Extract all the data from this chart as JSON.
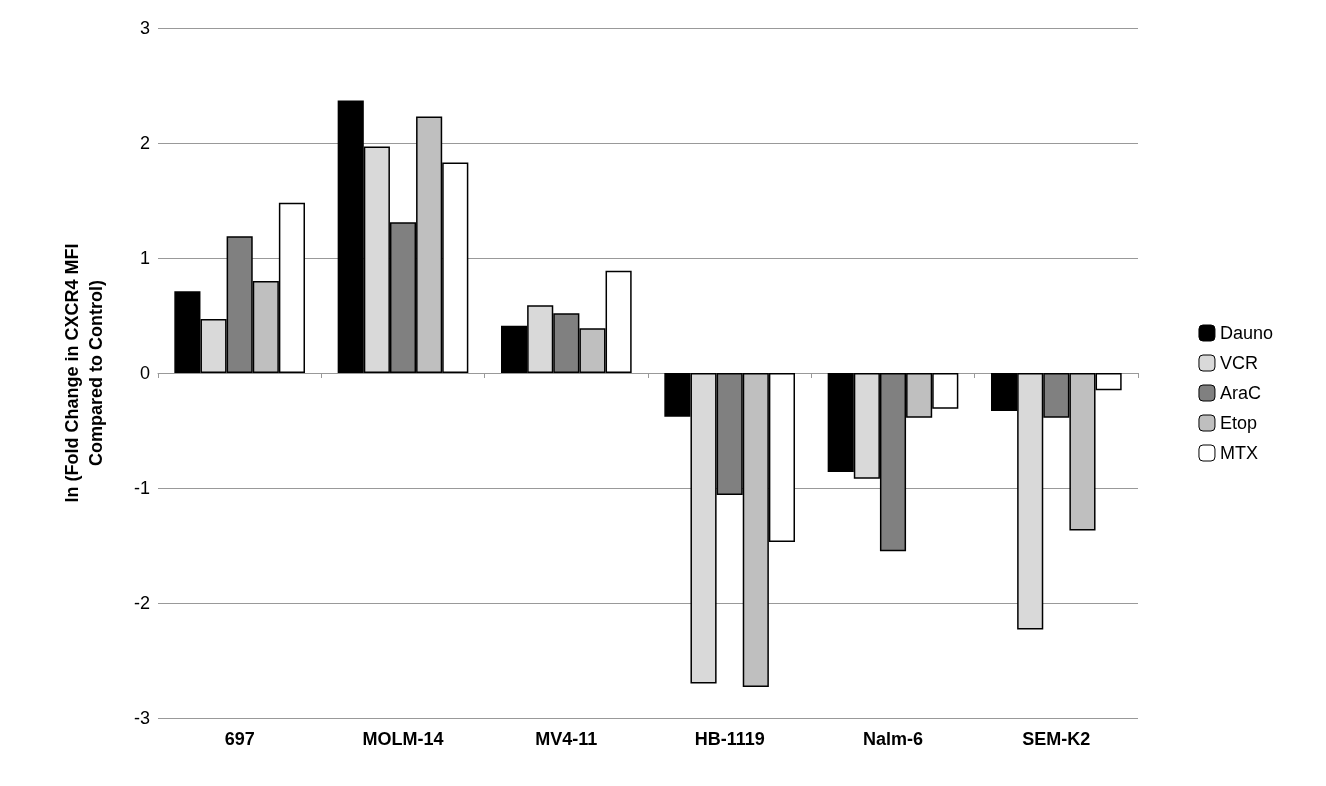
{
  "chart_data": {
    "type": "bar",
    "ylabel": "ln (Fold Change in CXCR4 MFI\nCompared to Control)",
    "categories": [
      "697",
      "MOLM-14",
      "MV4-11",
      "HB-1119",
      "Nalm-6",
      "SEM-K2"
    ],
    "series": [
      {
        "name": "Dauno",
        "color": "#000000",
        "values": [
          0.71,
          2.37,
          0.41,
          -0.38,
          -0.86,
          -0.33
        ]
      },
      {
        "name": "VCR",
        "color": "#d9d9d9",
        "values": [
          0.47,
          1.97,
          0.59,
          -2.7,
          -0.92,
          -2.23
        ]
      },
      {
        "name": "AraC",
        "color": "#808080",
        "values": [
          1.19,
          1.31,
          0.52,
          -1.06,
          -1.55,
          -0.39
        ]
      },
      {
        "name": "Etop",
        "color": "#bfbfbf",
        "values": [
          0.8,
          2.23,
          0.39,
          -2.73,
          -0.39,
          -1.37
        ]
      },
      {
        "name": "MTX",
        "color": "#ffffff",
        "values": [
          1.48,
          1.83,
          0.89,
          -1.47,
          -0.31,
          -0.15
        ]
      }
    ],
    "ylim": [
      -3,
      3
    ],
    "yticks": [
      -3,
      -2,
      -1,
      0,
      1,
      2,
      3
    ],
    "grid": "y",
    "legend": "right"
  }
}
